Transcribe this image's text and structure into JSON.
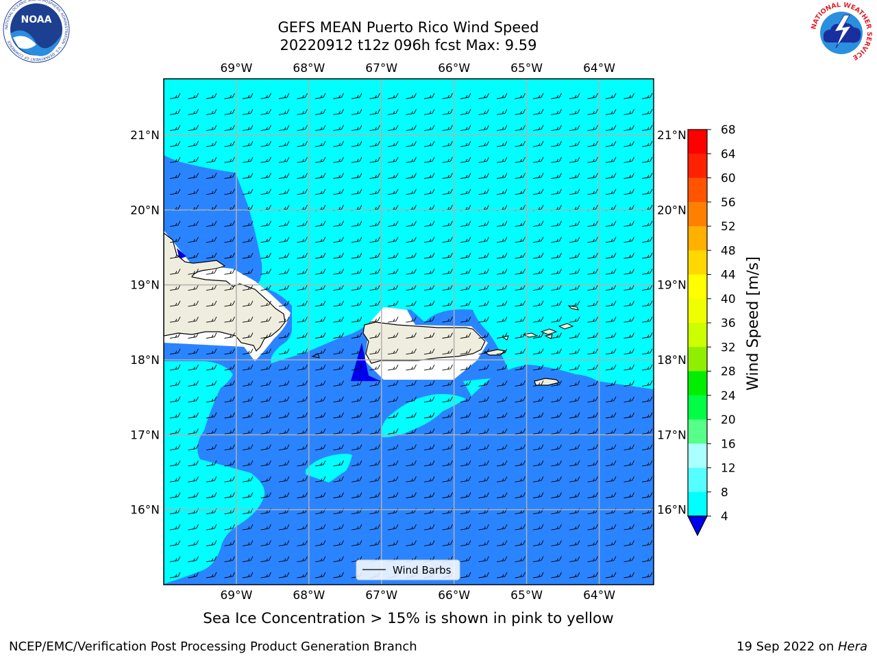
{
  "title_line1": "GEFS MEAN Puerto Rico Wind Speed",
  "title_line2": "20220912 t12z 096h fcst   Max: 9.59",
  "subtitle": "Sea Ice Concentration > 15% is shown in pink to yellow",
  "footer_left": "NCEP/EMC/Verification Post Processing Product Generation Branch",
  "footer_date": "19 Sep 2022 on ",
  "footer_host": "Hera",
  "legend_label": "Wind Barbs",
  "logos": {
    "noaa": "NOAA",
    "noaa_ring": "NATIONAL OCEANIC AND ATMOSPHERIC ADMINISTRATION · U.S. DEPARTMENT OF COMMERCE",
    "nws_ring": "NATIONAL WEATHER SERVICE"
  },
  "map": {
    "lon_labels": [
      "69°W",
      "68°W",
      "67°W",
      "66°W",
      "65°W",
      "64°W"
    ],
    "lat_labels": [
      "21°N",
      "20°N",
      "19°N",
      "18°N",
      "17°N",
      "16°N"
    ],
    "lon_values": [
      -69,
      -68,
      -67,
      -66,
      -65,
      -64
    ],
    "lat_values": [
      21,
      20,
      19,
      18,
      17,
      16
    ],
    "extent": {
      "lon_min": -70,
      "lon_max": -63.25,
      "lat_min": 15,
      "lat_max": 21.75
    },
    "colors": {
      "land": "#efedde",
      "coast": "#000000",
      "calm": "#ffffff",
      "range_4_8": "#2b84ff",
      "range_8_12": "#00ffff",
      "below_4": "#0000ee",
      "grid": "#b0b0b0"
    },
    "wind_direction": "easterly"
  },
  "colorbar": {
    "label": "Wind Speed [m/s]",
    "ticks": [
      "68",
      "64",
      "60",
      "56",
      "52",
      "48",
      "44",
      "40",
      "36",
      "32",
      "28",
      "24",
      "20",
      "16",
      "12",
      "8",
      "4"
    ],
    "colors": [
      "#ff0000",
      "#ff2200",
      "#ff5500",
      "#ff8000",
      "#ffb000",
      "#ffd800",
      "#ffff00",
      "#f0ff00",
      "#ccff00",
      "#90ee00",
      "#00ee00",
      "#00ff44",
      "#55ff88",
      "#aaffff",
      "#55ffff",
      "#00ffff",
      "#2b84ff"
    ],
    "extend_color": "#0000ee"
  }
}
